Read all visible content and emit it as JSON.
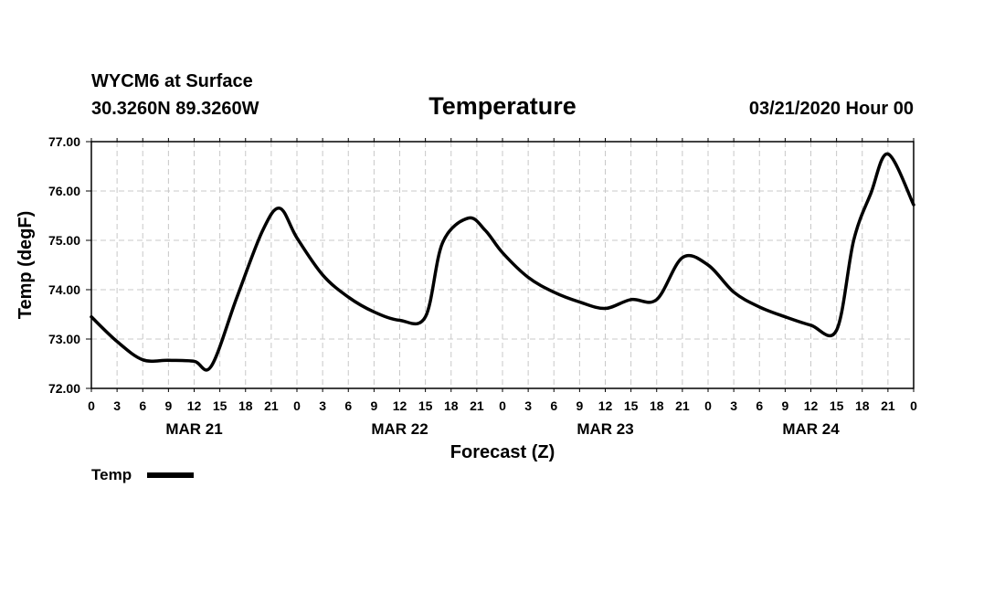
{
  "header": {
    "station": "WYCM6 at Surface",
    "location": "30.3260N 89.3260W",
    "title": "Temperature",
    "run": "03/21/2020 Hour 00"
  },
  "chart_data": {
    "type": "line",
    "title": "Temperature",
    "xlabel": "Forecast (Z)",
    "ylabel": "Temp (degF)",
    "ylim": [
      72.0,
      77.0
    ],
    "xlim": [
      0,
      96
    ],
    "y_ticks": [
      "72.00",
      "73.00",
      "74.00",
      "75.00",
      "76.00",
      "77.00"
    ],
    "x_tick_hours": [
      0,
      3,
      6,
      9,
      12,
      15,
      18,
      21,
      24,
      27,
      30,
      33,
      36,
      39,
      42,
      45,
      48,
      51,
      54,
      57,
      60,
      63,
      66,
      69,
      72,
      75,
      78,
      81,
      84,
      87,
      90,
      93,
      96
    ],
    "x_tick_labels": [
      "0",
      "3",
      "6",
      "9",
      "12",
      "15",
      "18",
      "21",
      "0",
      "3",
      "6",
      "9",
      "12",
      "15",
      "18",
      "21",
      "0",
      "3",
      "6",
      "9",
      "12",
      "15",
      "18",
      "21",
      "0",
      "3",
      "6",
      "9",
      "12",
      "15",
      "18",
      "21",
      "0"
    ],
    "day_labels": [
      {
        "label": "MAR 21",
        "hour": 12
      },
      {
        "label": "MAR 22",
        "hour": 36
      },
      {
        "label": "MAR 23",
        "hour": 60
      },
      {
        "label": "MAR 24",
        "hour": 84
      }
    ],
    "grid": true,
    "legend": "bottom-left",
    "series": [
      {
        "name": "Temp",
        "x": [
          0,
          3,
          6,
          9,
          12,
          14,
          17,
          20,
          22,
          24,
          27,
          30,
          33,
          36,
          39,
          41,
          44,
          46,
          48,
          51,
          54,
          57,
          60,
          63,
          66,
          69,
          72,
          75,
          78,
          81,
          84,
          87,
          89,
          91,
          93,
          96
        ],
        "values": [
          73.45,
          72.95,
          72.58,
          72.57,
          72.55,
          72.45,
          73.85,
          75.2,
          75.65,
          75.05,
          74.3,
          73.85,
          73.55,
          73.38,
          73.45,
          74.95,
          75.45,
          75.2,
          74.75,
          74.25,
          73.95,
          73.75,
          73.62,
          73.8,
          73.8,
          74.65,
          74.5,
          73.95,
          73.65,
          73.45,
          73.28,
          73.18,
          75.0,
          75.95,
          76.75,
          75.72
        ]
      }
    ]
  }
}
